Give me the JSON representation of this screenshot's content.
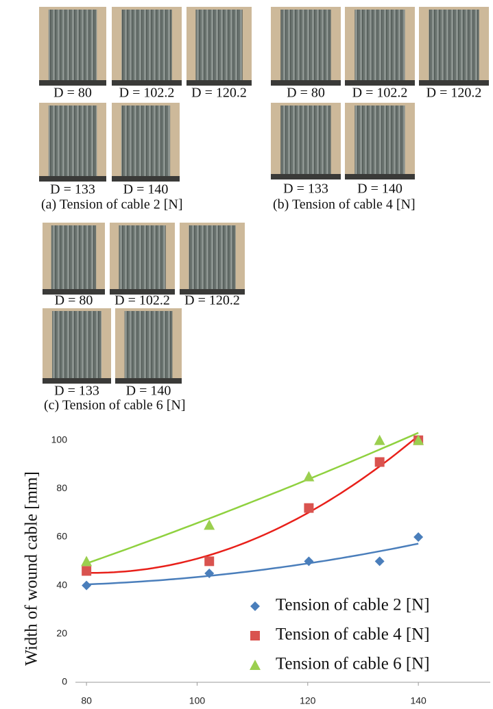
{
  "panels": [
    {
      "labels": [
        "D = 80",
        "D = 102.2",
        "D = 120.2",
        "D = 133",
        "D = 140"
      ],
      "caption": "(a) Tension of cable 2 [N]"
    },
    {
      "labels": [
        "D = 80",
        "D = 102.2",
        "D = 120.2",
        "D = 133",
        "D = 140"
      ],
      "caption": "(b) Tension of cable 4 [N]"
    },
    {
      "labels": [
        "D = 80",
        "D = 102.2",
        "D = 120.2",
        "D = 133",
        "D = 140"
      ],
      "caption": "(c) Tension of cable 6 [N]"
    }
  ],
  "chart_data": {
    "type": "scatter",
    "y_label": "Width of wound cable [mm]",
    "x": [
      80,
      102.2,
      120.2,
      133,
      140
    ],
    "series": [
      {
        "name": "Tension of cable 2 [N]",
        "color": "#4a7ebb",
        "marker": "diamond",
        "values": [
          40,
          45,
          50,
          50,
          60
        ]
      },
      {
        "name": "Tension of cable 4 [N]",
        "color": "#d9534f",
        "marker": "square",
        "values": [
          46,
          50,
          72,
          91,
          100
        ]
      },
      {
        "name": "Tension of cable 6 [N]",
        "color": "#9bcf4f",
        "marker": "triangle",
        "values": [
          50,
          65,
          85,
          100,
          100
        ]
      }
    ],
    "trendline": "polynomial-2",
    "xlim": [
      78,
      153
    ],
    "ylim": [
      0,
      105
    ],
    "xticks": [
      80,
      100,
      120,
      140
    ],
    "yticks": [
      0,
      20,
      40,
      60,
      80,
      100
    ],
    "grid": false,
    "legend": "lower right"
  }
}
